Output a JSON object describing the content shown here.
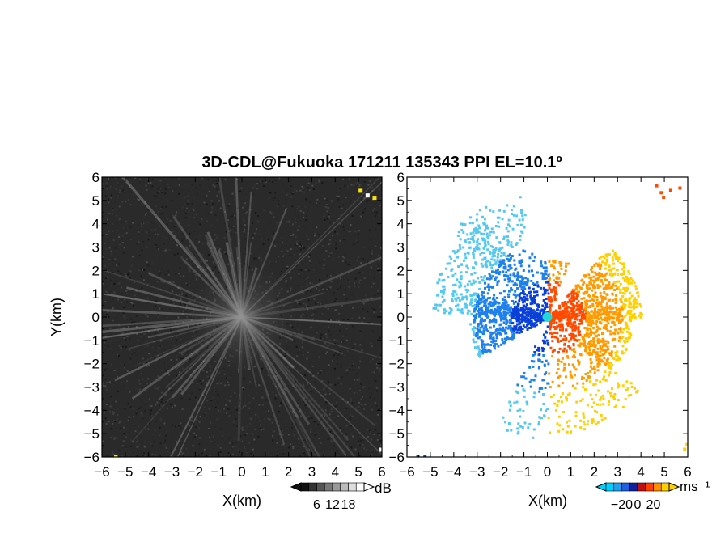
{
  "title": "3D-CDL@Fukuoka 171211 135343 PPI EL=10.1º",
  "chart_data": [
    {
      "type": "heatmap",
      "panel": "reflectivity",
      "xlabel": "X(km)",
      "ylabel": "Y(km)",
      "xlim": [
        -6,
        6
      ],
      "ylim": [
        -6,
        6
      ],
      "xticks": [
        -6,
        -5,
        -4,
        -3,
        -2,
        -1,
        0,
        1,
        2,
        3,
        4,
        5,
        6
      ],
      "yticks": [
        -6,
        -5,
        -4,
        -3,
        -2,
        -1,
        0,
        1,
        2,
        3,
        4,
        5,
        6
      ],
      "colorbar": {
        "unit": "dB",
        "ticks": [
          6,
          12,
          18
        ],
        "colors": [
          "#111111",
          "#333333",
          "#555555",
          "#777777",
          "#999999",
          "#bbbbbb",
          "#dddddd",
          "#ffffff"
        ]
      },
      "background_color": "#2a2a2a",
      "streak_color": "#cfcfcf",
      "saturated_color": "#ffe600"
    },
    {
      "type": "heatmap",
      "panel": "doppler-velocity",
      "xlabel": "X(km)",
      "ylabel": "",
      "xlim": [
        -6,
        6
      ],
      "ylim": [
        -6,
        6
      ],
      "xticks": [
        -6,
        -5,
        -4,
        -3,
        -2,
        -1,
        0,
        1,
        2,
        3,
        4,
        5,
        6
      ],
      "yticks": [
        -6,
        -5,
        -4,
        -3,
        -2,
        -1,
        0,
        1,
        2,
        3,
        4,
        5,
        6
      ],
      "colorbar": {
        "unit": "ms⁻¹",
        "ticks": [
          -20,
          0,
          20
        ],
        "colors": [
          "#00d0ff",
          "#22a0f0",
          "#2060e0",
          "#1020a0",
          "#c01010",
          "#ff4000",
          "#ff9000",
          "#ffd000"
        ]
      },
      "approaching_colors": [
        "#55c8f0",
        "#1e80ec",
        "#0a40d8"
      ],
      "receding_colors": [
        "#ff4a00",
        "#ff9a00",
        "#ffd000"
      ],
      "center_color": "#22d8d8"
    }
  ]
}
